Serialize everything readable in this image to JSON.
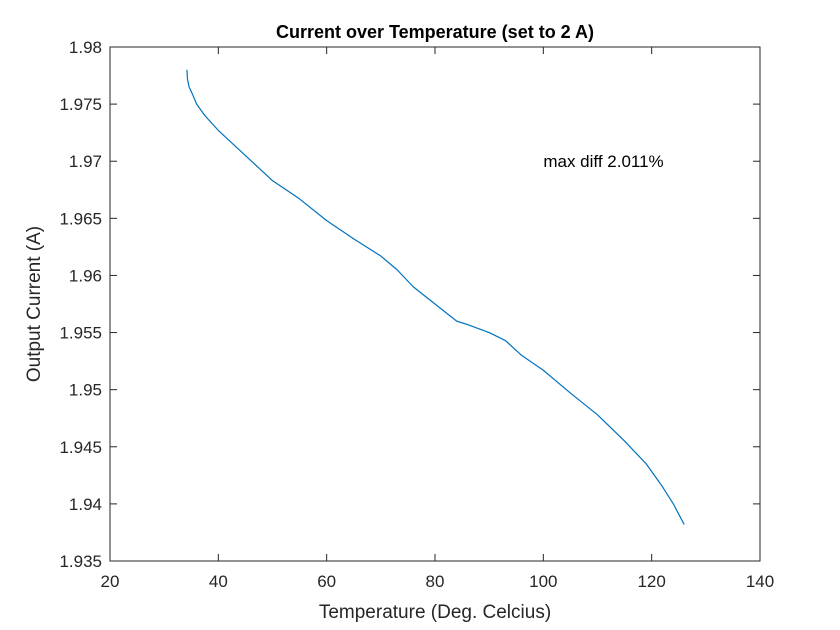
{
  "chart_data": {
    "type": "line",
    "title": "Current over Temperature (set to 2 A)",
    "xlabel": "Temperature (Deg. Celcius)",
    "ylabel": "Output Current (A)",
    "xlim": [
      20,
      140
    ],
    "ylim": [
      1.935,
      1.98
    ],
    "xticks": [
      20,
      40,
      60,
      80,
      100,
      120,
      140
    ],
    "yticks": [
      1.935,
      1.94,
      1.945,
      1.95,
      1.955,
      1.96,
      1.965,
      1.97,
      1.975,
      1.98
    ],
    "xtick_labels": [
      "20",
      "40",
      "60",
      "80",
      "100",
      "120",
      "140"
    ],
    "ytick_labels": [
      "1.935",
      "1.94",
      "1.945",
      "1.95",
      "1.955",
      "1.96",
      "1.965",
      "1.97",
      "1.975",
      "1.98"
    ],
    "grid": false,
    "annotation": {
      "text": "max diff 2.011%",
      "x": 100,
      "y": 1.97
    },
    "series": [
      {
        "color": "#0072BD",
        "x": [
          34.2,
          34.3,
          34.6,
          35.1,
          36.0,
          37.5,
          40.0,
          45.0,
          50.0,
          55.0,
          60.0,
          65.0,
          70.0,
          73.0,
          76.0,
          80.0,
          84.0,
          86.0,
          90.0,
          93.0,
          96.0,
          100.0,
          105.0,
          110.0,
          115.0,
          119.0,
          122.0,
          124.0,
          126.0
        ],
        "y": [
          1.978,
          1.9772,
          1.9765,
          1.976,
          1.975,
          1.974,
          1.9727,
          1.9705,
          1.9683,
          1.9667,
          1.9648,
          1.9632,
          1.9617,
          1.9605,
          1.959,
          1.9575,
          1.956,
          1.9557,
          1.955,
          1.9543,
          1.953,
          1.9517,
          1.9497,
          1.9478,
          1.9455,
          1.9435,
          1.9415,
          1.94,
          1.9382
        ]
      }
    ]
  }
}
